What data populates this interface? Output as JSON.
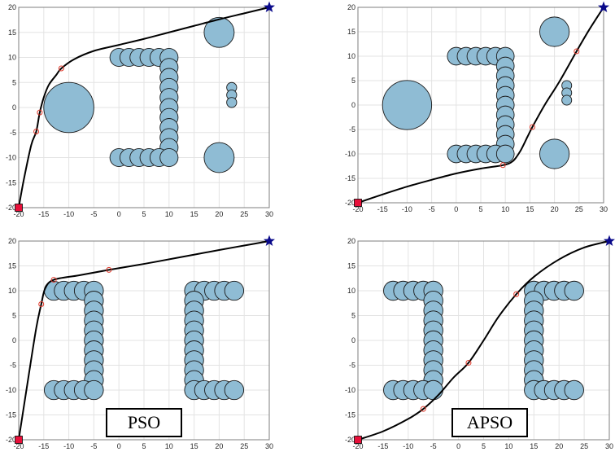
{
  "colors": {
    "obstacle_fill": "#8fbcd4",
    "obstacle_stroke": "#1a1a1a",
    "path": "#000000",
    "waypoint": "#e0392b",
    "start": "#e8103a",
    "goal": "#0a0a8a",
    "grid": "#e3e3e3",
    "axis": "#7f7f7f"
  },
  "labels": {
    "pso": "PSO",
    "apso": "APSO"
  },
  "chart_data": [
    {
      "type": "scatter",
      "panel": "top-left",
      "xlim": [
        -20,
        30
      ],
      "ylim": [
        -20,
        20
      ],
      "xticks": [
        -20,
        -15,
        -10,
        -5,
        0,
        5,
        10,
        15,
        20,
        25,
        30
      ],
      "yticks": [
        -20,
        -15,
        -10,
        -5,
        0,
        5,
        10,
        15,
        20
      ],
      "grid": true,
      "start": [
        -20,
        -20
      ],
      "goal": [
        30,
        20
      ],
      "obstacles": [
        {
          "x": 0,
          "y": 10,
          "r": 1.8
        },
        {
          "x": 2,
          "y": 10,
          "r": 1.8
        },
        {
          "x": 4,
          "y": 10,
          "r": 1.8
        },
        {
          "x": 6,
          "y": 10,
          "r": 1.8
        },
        {
          "x": 8,
          "y": 10,
          "r": 1.8
        },
        {
          "x": 10,
          "y": 10,
          "r": 1.8
        },
        {
          "x": 10,
          "y": 8,
          "r": 1.8
        },
        {
          "x": 10,
          "y": 6,
          "r": 1.8
        },
        {
          "x": 10,
          "y": 4,
          "r": 1.8
        },
        {
          "x": 10,
          "y": 2,
          "r": 1.8
        },
        {
          "x": 10,
          "y": 0,
          "r": 1.8
        },
        {
          "x": 10,
          "y": -2,
          "r": 1.8
        },
        {
          "x": 10,
          "y": -4,
          "r": 1.8
        },
        {
          "x": 10,
          "y": -6,
          "r": 1.8
        },
        {
          "x": 10,
          "y": -8,
          "r": 1.8
        },
        {
          "x": 0,
          "y": -10,
          "r": 1.8
        },
        {
          "x": 2,
          "y": -10,
          "r": 1.8
        },
        {
          "x": 4,
          "y": -10,
          "r": 1.8
        },
        {
          "x": 6,
          "y": -10,
          "r": 1.8
        },
        {
          "x": 8,
          "y": -10,
          "r": 1.8
        },
        {
          "x": 10,
          "y": -10,
          "r": 1.8
        },
        {
          "x": -10,
          "y": 0,
          "r": 5
        },
        {
          "x": 20,
          "y": 15,
          "r": 3
        },
        {
          "x": 20,
          "y": -10,
          "r": 3
        },
        {
          "x": 22.5,
          "y": 4,
          "r": 1
        },
        {
          "x": 22.5,
          "y": 2.5,
          "r": 1
        },
        {
          "x": 22.5,
          "y": 1,
          "r": 1
        }
      ],
      "waypoints": [
        [
          -16.5,
          -4.8
        ],
        [
          -15.8,
          -1
        ],
        [
          -11.5,
          7.8
        ]
      ],
      "path": [
        [
          -20,
          -20
        ],
        [
          -19,
          -14.5
        ],
        [
          -17.5,
          -7.5
        ],
        [
          -16.5,
          -4.8
        ],
        [
          -15.8,
          -1
        ],
        [
          -15,
          2
        ],
        [
          -14,
          4.5
        ],
        [
          -12.5,
          6.5
        ],
        [
          -11.5,
          7.8
        ],
        [
          -9,
          9.6
        ],
        [
          -5,
          11.3
        ],
        [
          0,
          12.5
        ],
        [
          5,
          13.7
        ],
        [
          10,
          15
        ],
        [
          15,
          16.3
        ],
        [
          20,
          17.6
        ],
        [
          25,
          18.8
        ],
        [
          30,
          20
        ]
      ]
    },
    {
      "type": "scatter",
      "panel": "top-right",
      "xlim": [
        -20,
        30
      ],
      "ylim": [
        -20,
        20
      ],
      "xticks": [
        -20,
        -15,
        -10,
        -5,
        0,
        5,
        10,
        15,
        20,
        25,
        30
      ],
      "yticks": [
        -20,
        -15,
        -10,
        -5,
        0,
        5,
        10,
        15,
        20
      ],
      "grid": true,
      "start": [
        -20,
        -20
      ],
      "goal": [
        30,
        20
      ],
      "obstacles": [
        {
          "x": 0,
          "y": 10,
          "r": 1.8
        },
        {
          "x": 2,
          "y": 10,
          "r": 1.8
        },
        {
          "x": 4,
          "y": 10,
          "r": 1.8
        },
        {
          "x": 6,
          "y": 10,
          "r": 1.8
        },
        {
          "x": 8,
          "y": 10,
          "r": 1.8
        },
        {
          "x": 10,
          "y": 10,
          "r": 1.8
        },
        {
          "x": 10,
          "y": 8,
          "r": 1.8
        },
        {
          "x": 10,
          "y": 6,
          "r": 1.8
        },
        {
          "x": 10,
          "y": 4,
          "r": 1.8
        },
        {
          "x": 10,
          "y": 2,
          "r": 1.8
        },
        {
          "x": 10,
          "y": 0,
          "r": 1.8
        },
        {
          "x": 10,
          "y": -2,
          "r": 1.8
        },
        {
          "x": 10,
          "y": -4,
          "r": 1.8
        },
        {
          "x": 10,
          "y": -6,
          "r": 1.8
        },
        {
          "x": 10,
          "y": -8,
          "r": 1.8
        },
        {
          "x": 0,
          "y": -10,
          "r": 1.8
        },
        {
          "x": 2,
          "y": -10,
          "r": 1.8
        },
        {
          "x": 4,
          "y": -10,
          "r": 1.8
        },
        {
          "x": 6,
          "y": -10,
          "r": 1.8
        },
        {
          "x": 8,
          "y": -10,
          "r": 1.8
        },
        {
          "x": 10,
          "y": -10,
          "r": 1.8
        },
        {
          "x": -10,
          "y": 0,
          "r": 5
        },
        {
          "x": 20,
          "y": 15,
          "r": 3
        },
        {
          "x": 20,
          "y": -10,
          "r": 3
        },
        {
          "x": 22.5,
          "y": 4,
          "r": 1
        },
        {
          "x": 22.5,
          "y": 2.5,
          "r": 1
        },
        {
          "x": 22.5,
          "y": 1,
          "r": 1
        }
      ],
      "waypoints": [
        [
          9.5,
          -12.3
        ],
        [
          15.5,
          -4.5
        ],
        [
          24.5,
          11
        ]
      ],
      "path": [
        [
          -20,
          -20
        ],
        [
          -15,
          -18.3
        ],
        [
          -10,
          -16.7
        ],
        [
          -5,
          -15.3
        ],
        [
          0,
          -14
        ],
        [
          5,
          -13
        ],
        [
          9.5,
          -12.3
        ],
        [
          11.5,
          -11.5
        ],
        [
          13,
          -9.5
        ],
        [
          14.5,
          -6.5
        ],
        [
          15.5,
          -4.5
        ],
        [
          18,
          0
        ],
        [
          21,
          4.8
        ],
        [
          24.5,
          11
        ],
        [
          27,
          15.3
        ],
        [
          30,
          20
        ]
      ]
    },
    {
      "type": "scatter",
      "panel": "bottom-left",
      "xlim": [
        -20,
        30
      ],
      "ylim": [
        -20,
        20
      ],
      "xticks": [
        -20,
        -15,
        -10,
        -5,
        0,
        5,
        10,
        15,
        20,
        25,
        30
      ],
      "yticks": [
        -20,
        -15,
        -10,
        -5,
        0,
        5,
        10,
        15,
        20
      ],
      "grid": true,
      "start": [
        -20,
        -20
      ],
      "goal": [
        30,
        20
      ],
      "obstacles": [
        {
          "x": -13,
          "y": 10,
          "r": 1.9
        },
        {
          "x": -11,
          "y": 10,
          "r": 1.9
        },
        {
          "x": -9,
          "y": 10,
          "r": 1.9
        },
        {
          "x": -7,
          "y": 10,
          "r": 1.9
        },
        {
          "x": -5,
          "y": 10,
          "r": 1.9
        },
        {
          "x": -5,
          "y": 8,
          "r": 1.9
        },
        {
          "x": -5,
          "y": 6,
          "r": 1.9
        },
        {
          "x": -5,
          "y": 4,
          "r": 1.9
        },
        {
          "x": -5,
          "y": 2,
          "r": 1.9
        },
        {
          "x": -5,
          "y": 0,
          "r": 1.9
        },
        {
          "x": -5,
          "y": -2,
          "r": 1.9
        },
        {
          "x": -5,
          "y": -4,
          "r": 1.9
        },
        {
          "x": -5,
          "y": -6,
          "r": 1.9
        },
        {
          "x": -5,
          "y": -8,
          "r": 1.9
        },
        {
          "x": -13,
          "y": -10,
          "r": 1.9
        },
        {
          "x": -11,
          "y": -10,
          "r": 1.9
        },
        {
          "x": -9,
          "y": -10,
          "r": 1.9
        },
        {
          "x": -7,
          "y": -10,
          "r": 1.9
        },
        {
          "x": -5,
          "y": -10,
          "r": 1.9
        },
        {
          "x": 15,
          "y": 10,
          "r": 1.9
        },
        {
          "x": 17,
          "y": 10,
          "r": 1.9
        },
        {
          "x": 19,
          "y": 10,
          "r": 1.9
        },
        {
          "x": 21,
          "y": 10,
          "r": 1.9
        },
        {
          "x": 23,
          "y": 10,
          "r": 1.9
        },
        {
          "x": 15,
          "y": 8,
          "r": 1.9
        },
        {
          "x": 15,
          "y": 6,
          "r": 1.9
        },
        {
          "x": 15,
          "y": 4,
          "r": 1.9
        },
        {
          "x": 15,
          "y": 2,
          "r": 1.9
        },
        {
          "x": 15,
          "y": 0,
          "r": 1.9
        },
        {
          "x": 15,
          "y": -2,
          "r": 1.9
        },
        {
          "x": 15,
          "y": -4,
          "r": 1.9
        },
        {
          "x": 15,
          "y": -6,
          "r": 1.9
        },
        {
          "x": 15,
          "y": -8,
          "r": 1.9
        },
        {
          "x": 15,
          "y": -10,
          "r": 1.9
        },
        {
          "x": 17,
          "y": -10,
          "r": 1.9
        },
        {
          "x": 19,
          "y": -10,
          "r": 1.9
        },
        {
          "x": 21,
          "y": -10,
          "r": 1.9
        },
        {
          "x": 23,
          "y": -10,
          "r": 1.9
        }
      ],
      "waypoints": [
        [
          -15.5,
          7.3
        ],
        [
          -13,
          12.2
        ],
        [
          -2,
          14.2
        ]
      ],
      "path": [
        [
          -20,
          -20
        ],
        [
          -18,
          -7
        ],
        [
          -16.5,
          2.5
        ],
        [
          -15.5,
          7.3
        ],
        [
          -14.7,
          10.5
        ],
        [
          -13,
          12.2
        ],
        [
          -8,
          13.1
        ],
        [
          -2,
          14.2
        ],
        [
          5,
          15.4
        ],
        [
          12,
          16.7
        ],
        [
          20,
          18.2
        ],
        [
          25,
          19.1
        ],
        [
          30,
          20
        ]
      ]
    },
    {
      "type": "scatter",
      "panel": "bottom-right",
      "xlim": [
        -20,
        30
      ],
      "ylim": [
        -20,
        20
      ],
      "xticks": [
        -20,
        -15,
        -10,
        -5,
        0,
        5,
        10,
        15,
        20,
        25,
        30
      ],
      "yticks": [
        -20,
        -15,
        -10,
        -5,
        0,
        5,
        10,
        15,
        20
      ],
      "grid": true,
      "start": [
        -20,
        -20
      ],
      "goal": [
        30,
        20
      ],
      "obstacles": [
        {
          "x": -13,
          "y": 10,
          "r": 1.9
        },
        {
          "x": -11,
          "y": 10,
          "r": 1.9
        },
        {
          "x": -9,
          "y": 10,
          "r": 1.9
        },
        {
          "x": -7,
          "y": 10,
          "r": 1.9
        },
        {
          "x": -5,
          "y": 10,
          "r": 1.9
        },
        {
          "x": -5,
          "y": 8,
          "r": 1.9
        },
        {
          "x": -5,
          "y": 6,
          "r": 1.9
        },
        {
          "x": -5,
          "y": 4,
          "r": 1.9
        },
        {
          "x": -5,
          "y": 2,
          "r": 1.9
        },
        {
          "x": -5,
          "y": 0,
          "r": 1.9
        },
        {
          "x": -5,
          "y": -2,
          "r": 1.9
        },
        {
          "x": -5,
          "y": -4,
          "r": 1.9
        },
        {
          "x": -5,
          "y": -6,
          "r": 1.9
        },
        {
          "x": -5,
          "y": -8,
          "r": 1.9
        },
        {
          "x": -13,
          "y": -10,
          "r": 1.9
        },
        {
          "x": -11,
          "y": -10,
          "r": 1.9
        },
        {
          "x": -9,
          "y": -10,
          "r": 1.9
        },
        {
          "x": -7,
          "y": -10,
          "r": 1.9
        },
        {
          "x": -5,
          "y": -10,
          "r": 1.9
        },
        {
          "x": 15,
          "y": 10,
          "r": 1.9
        },
        {
          "x": 17,
          "y": 10,
          "r": 1.9
        },
        {
          "x": 19,
          "y": 10,
          "r": 1.9
        },
        {
          "x": 21,
          "y": 10,
          "r": 1.9
        },
        {
          "x": 23,
          "y": 10,
          "r": 1.9
        },
        {
          "x": 15,
          "y": 8,
          "r": 1.9
        },
        {
          "x": 15,
          "y": 6,
          "r": 1.9
        },
        {
          "x": 15,
          "y": 4,
          "r": 1.9
        },
        {
          "x": 15,
          "y": 2,
          "r": 1.9
        },
        {
          "x": 15,
          "y": 0,
          "r": 1.9
        },
        {
          "x": 15,
          "y": -2,
          "r": 1.9
        },
        {
          "x": 15,
          "y": -4,
          "r": 1.9
        },
        {
          "x": 15,
          "y": -6,
          "r": 1.9
        },
        {
          "x": 15,
          "y": -8,
          "r": 1.9
        },
        {
          "x": 15,
          "y": -10,
          "r": 1.9
        },
        {
          "x": 17,
          "y": -10,
          "r": 1.9
        },
        {
          "x": 19,
          "y": -10,
          "r": 1.9
        },
        {
          "x": 21,
          "y": -10,
          "r": 1.9
        },
        {
          "x": 23,
          "y": -10,
          "r": 1.9
        }
      ],
      "waypoints": [
        [
          -7,
          -13.8
        ],
        [
          2,
          -4.5
        ],
        [
          11.5,
          9.3
        ]
      ],
      "path": [
        [
          -20,
          -20
        ],
        [
          -15,
          -18.3
        ],
        [
          -10,
          -15.8
        ],
        [
          -7,
          -13.8
        ],
        [
          -4,
          -11
        ],
        [
          -1,
          -7.5
        ],
        [
          2,
          -4.5
        ],
        [
          5,
          0
        ],
        [
          8,
          4.8
        ],
        [
          11.5,
          9.3
        ],
        [
          15,
          12.8
        ],
        [
          20,
          16.3
        ],
        [
          25,
          18.7
        ],
        [
          30,
          20
        ]
      ]
    }
  ]
}
